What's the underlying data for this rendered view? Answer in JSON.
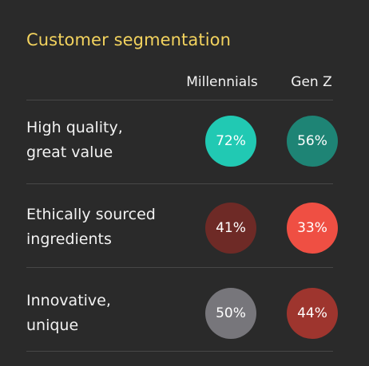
{
  "title": "Customer segmentation",
  "chart_data": {
    "type": "table",
    "columns": [
      "Millennials",
      "Gen Z"
    ],
    "rows": [
      {
        "label_lines": [
          "High quality,",
          "great value"
        ],
        "values": [
          72,
          56
        ],
        "display": [
          "72%",
          "56%"
        ],
        "colors": [
          "#21c9b3",
          "#1e8475"
        ]
      },
      {
        "label_lines": [
          "Ethically sourced",
          "ingredients"
        ],
        "values": [
          41,
          33
        ],
        "display": [
          "41%",
          "33%"
        ],
        "colors": [
          "#6e2a26",
          "#ef4f43"
        ]
      },
      {
        "label_lines": [
          "Innovative,",
          "unique"
        ],
        "values": [
          50,
          44
        ],
        "display": [
          "50%",
          "44%"
        ],
        "colors": [
          "#77767b",
          "#9e352e"
        ]
      }
    ]
  }
}
